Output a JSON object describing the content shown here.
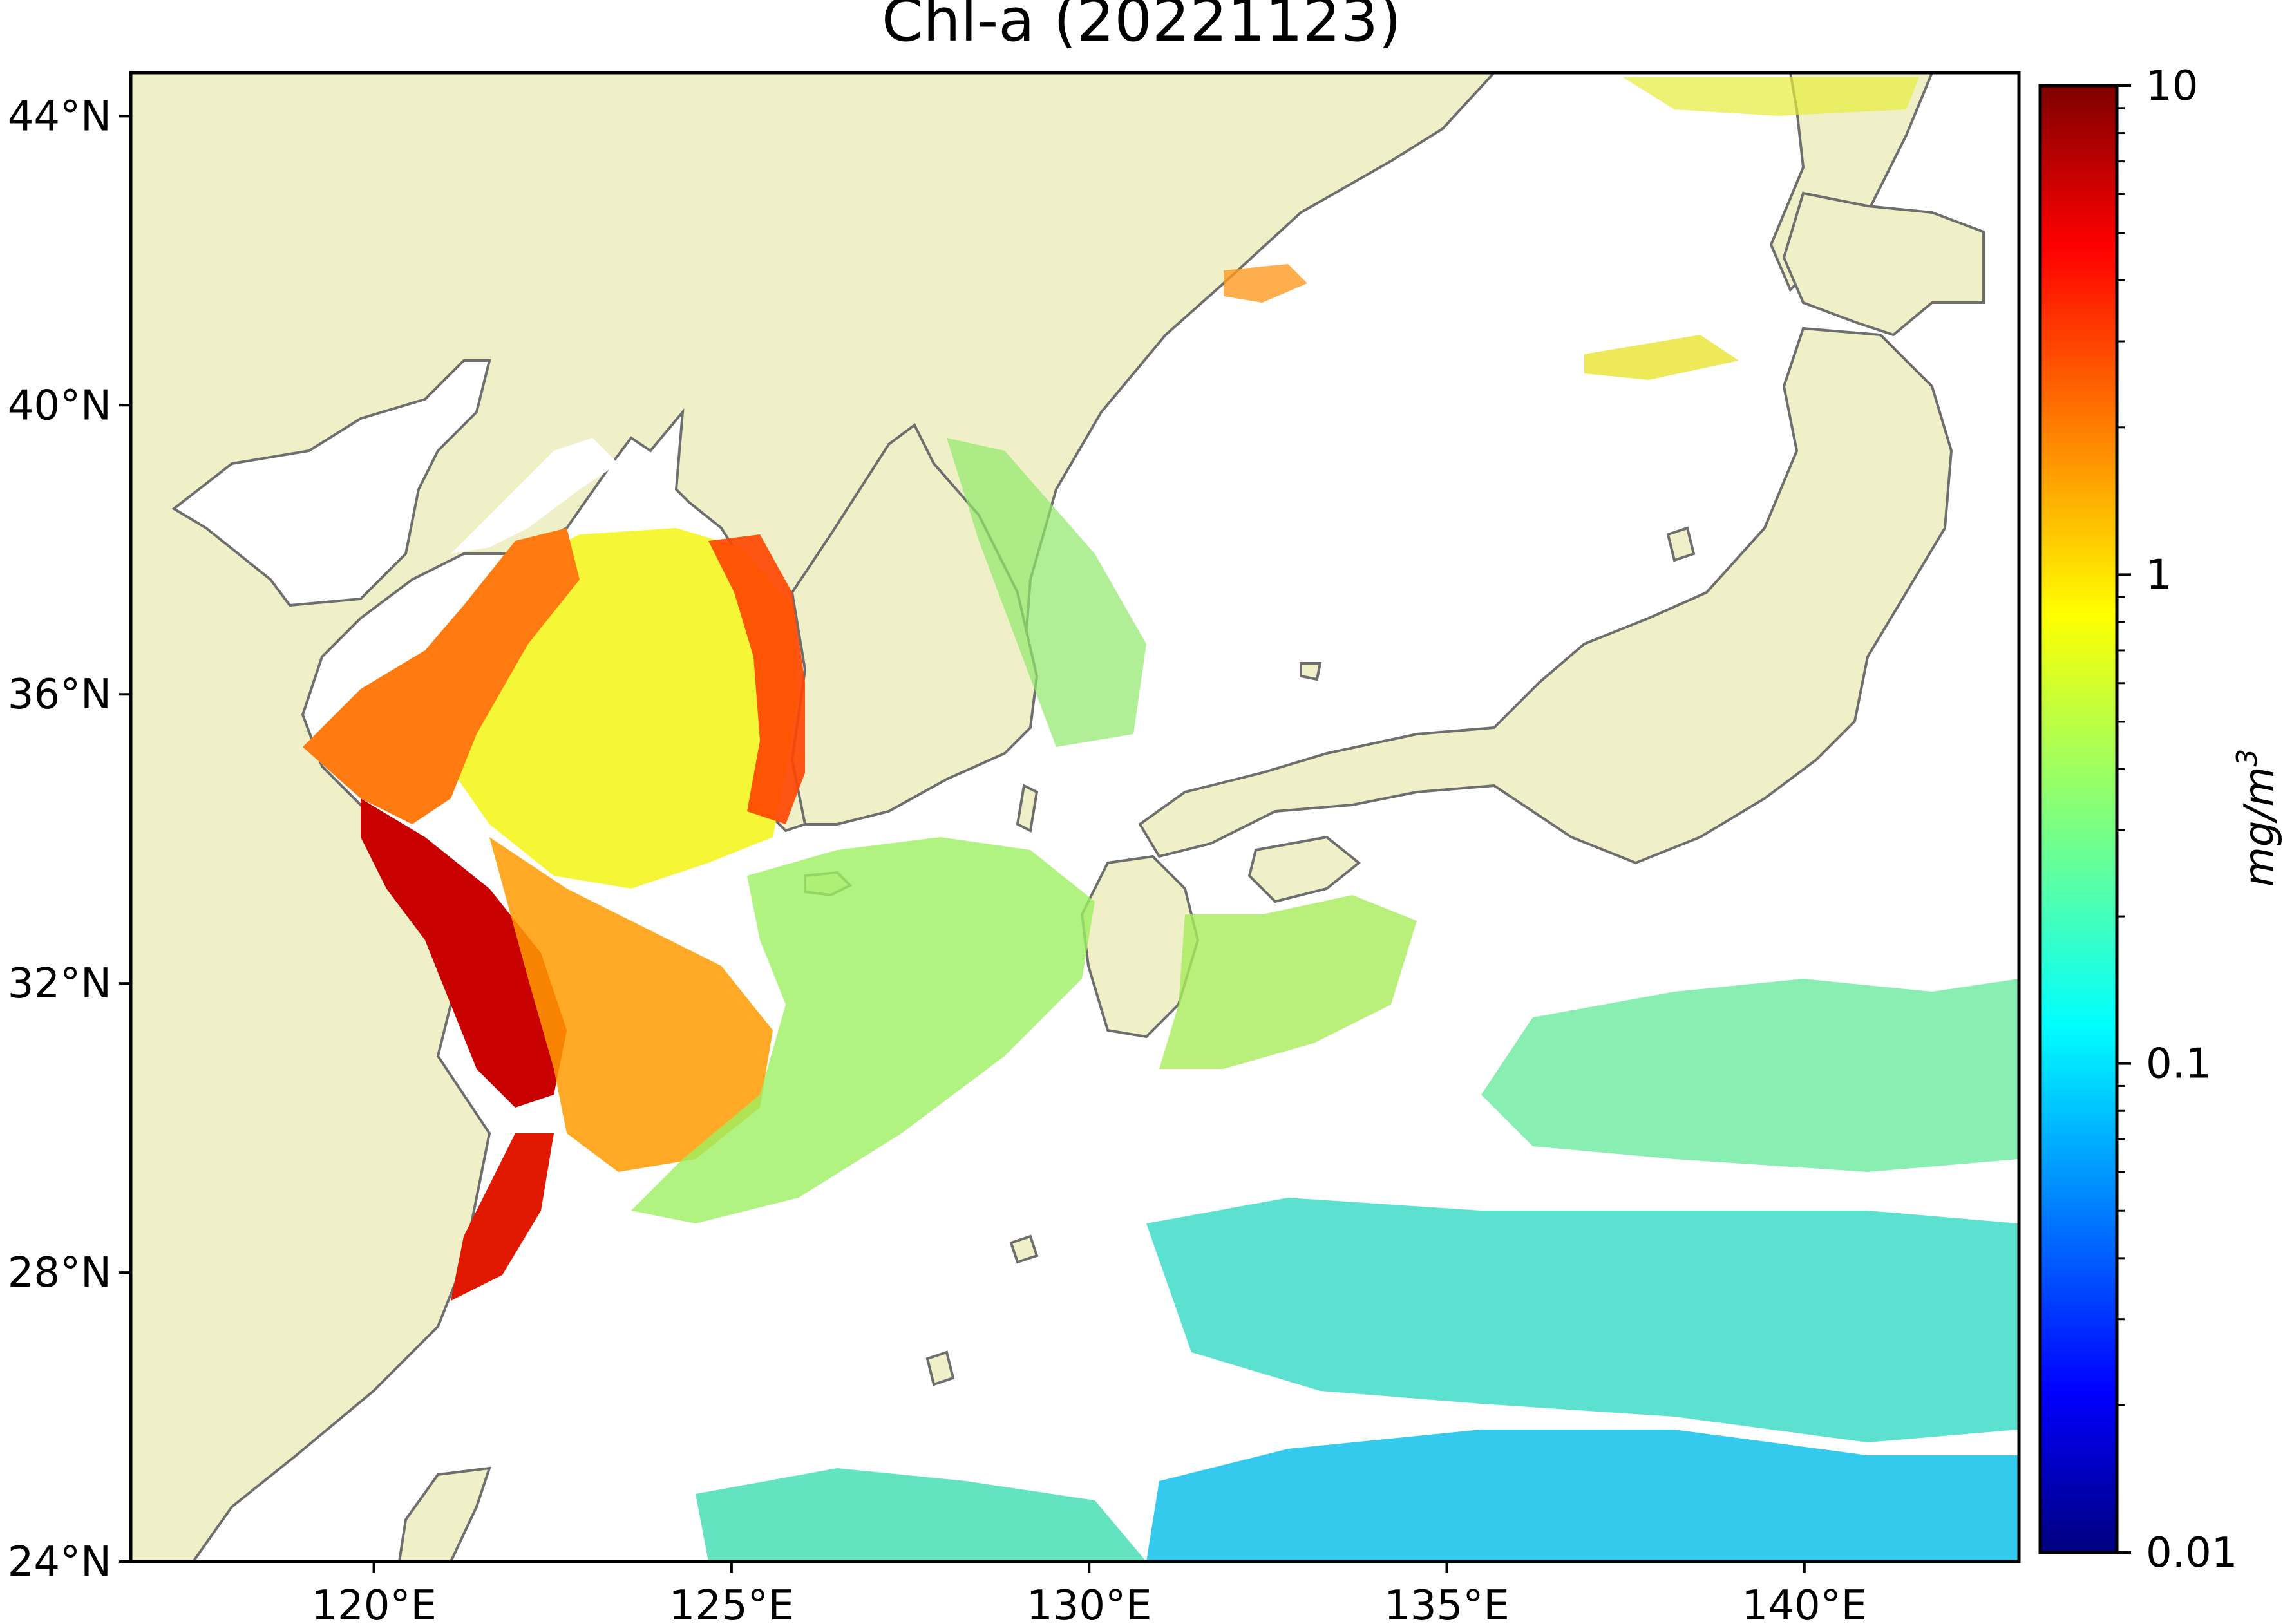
{
  "title": "Chl-a (20221123)",
  "map": {
    "lon_range": [
      116.6,
      143.0
    ],
    "lat_range": [
      24.0,
      44.6
    ],
    "lat_ticks": [
      {
        "value": 44,
        "label": "44°N"
      },
      {
        "value": 40,
        "label": "40°N"
      },
      {
        "value": 36,
        "label": "36°N"
      },
      {
        "value": 32,
        "label": "32°N"
      },
      {
        "value": 28,
        "label": "28°N"
      },
      {
        "value": 24,
        "label": "24°N"
      }
    ],
    "lon_ticks": [
      {
        "value": 120,
        "label": "120°E"
      },
      {
        "value": 125,
        "label": "125°E"
      },
      {
        "value": 130,
        "label": "130°E"
      },
      {
        "value": 135,
        "label": "135°E"
      },
      {
        "value": 140,
        "label": "140°E"
      }
    ],
    "colors": {
      "land": "#f0f0c8",
      "ocean_no_data": "#ffffff",
      "coastline": "#6e6e6e"
    }
  },
  "colorbar": {
    "scale": "log",
    "range": [
      0.01,
      10
    ],
    "colormap": "jet",
    "unit_label": "mg/m",
    "unit_exponent": "3",
    "ticks": [
      {
        "value": 10,
        "label": "10"
      },
      {
        "value": 1,
        "label": "1"
      },
      {
        "value": 0.1,
        "label": "0.1"
      },
      {
        "value": 0.01,
        "label": "0.01"
      }
    ]
  }
}
